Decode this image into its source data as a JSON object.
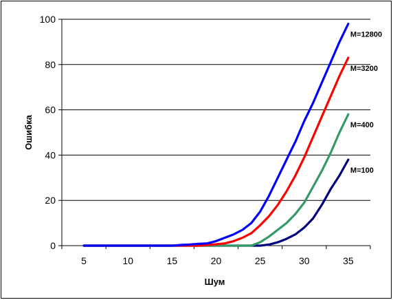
{
  "chart_data": {
    "type": "line",
    "xlabel": "Шум",
    "ylabel": "Ошибка",
    "xlim": [
      2.5,
      37.5
    ],
    "ylim": [
      0,
      100
    ],
    "x_ticks": [
      5,
      10,
      15,
      20,
      25,
      30,
      35
    ],
    "y_ticks": [
      0,
      20,
      40,
      60,
      80,
      100
    ],
    "grid": "horizontal",
    "legend": "inline-right",
    "series": [
      {
        "name": "M=100",
        "color": "#000080",
        "x": [
          5,
          10,
          15,
          20,
          23,
          24,
          25,
          26,
          27,
          28,
          29,
          30,
          31,
          32,
          33,
          34,
          35
        ],
        "y": [
          0,
          0,
          0,
          0,
          0,
          0,
          0,
          0.5,
          1.5,
          3,
          5,
          8,
          12,
          18,
          25,
          31,
          38
        ]
      },
      {
        "name": "M=400",
        "color": "#339966",
        "x": [
          5,
          10,
          15,
          20,
          22,
          23,
          24,
          25,
          26,
          27,
          28,
          29,
          30,
          31,
          32,
          33,
          34,
          35
        ],
        "y": [
          0,
          0,
          0,
          0,
          0,
          0,
          0,
          1.5,
          4,
          7,
          10,
          14,
          19,
          26,
          33,
          41,
          50,
          58
        ]
      },
      {
        "name": "M=3200",
        "color": "#ff0000",
        "x": [
          5,
          10,
          15,
          18,
          19,
          20,
          21,
          22,
          23,
          24,
          25,
          26,
          27,
          28,
          29,
          30,
          31,
          32,
          33,
          34,
          35
        ],
        "y": [
          0,
          0,
          0,
          0,
          0.3,
          0.6,
          1,
          2,
          3.5,
          5.5,
          9,
          13,
          18,
          24,
          31,
          39,
          48,
          57,
          66,
          75,
          83
        ]
      },
      {
        "name": "M=12800",
        "color": "#0000ff",
        "x": [
          5,
          10,
          15,
          16,
          17,
          18,
          19,
          20,
          21,
          22,
          23,
          24,
          25,
          26,
          27,
          28,
          29,
          30,
          31,
          32,
          33,
          34,
          35
        ],
        "y": [
          0,
          0,
          0,
          0.3,
          0.5,
          0.8,
          1,
          2,
          3.5,
          5,
          7,
          10,
          15,
          22,
          30,
          38,
          46,
          55,
          63,
          72,
          81,
          90,
          98
        ]
      }
    ]
  }
}
